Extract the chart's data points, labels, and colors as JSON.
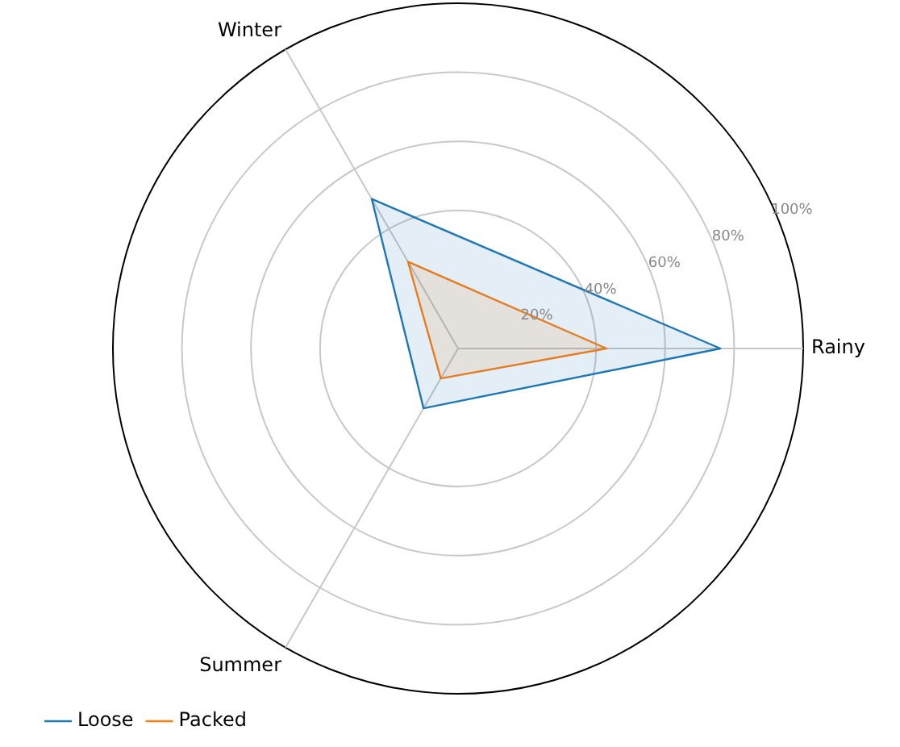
{
  "chart_data": {
    "type": "radar",
    "categories": [
      "Rainy",
      "Summer",
      "Winter"
    ],
    "series": [
      {
        "name": "Loose",
        "color": "#1f77b4",
        "values": [
          76,
          20,
          50
        ]
      },
      {
        "name": "Packed",
        "color": "#ff7f0e",
        "values": [
          43,
          10,
          29
        ]
      }
    ],
    "ylim": [
      0,
      100
    ],
    "yticks": [
      {
        "value": 20,
        "label": "20%"
      },
      {
        "value": 40,
        "label": "40%"
      },
      {
        "value": 60,
        "label": "60%"
      },
      {
        "value": 80,
        "label": "80%"
      },
      {
        "value": 100,
        "label": "100%"
      }
    ],
    "grid": true,
    "legend": "bottom left",
    "marker": "none",
    "line_style": "solid"
  }
}
